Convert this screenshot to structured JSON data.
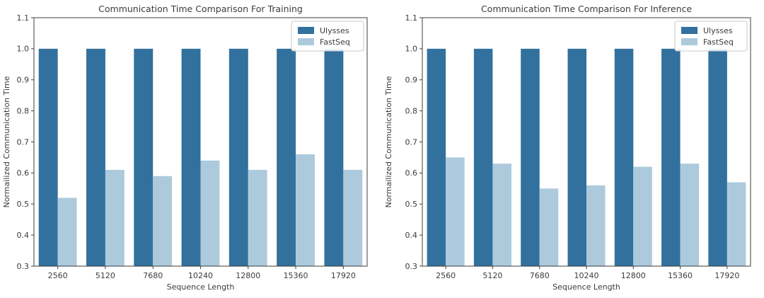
{
  "figure": {
    "background": "#ffffff",
    "text_color": "#3b3b3b",
    "spine_color": "#3c3c3c",
    "legend_border_color": "#c9c9c9"
  },
  "chart_data": [
    {
      "type": "bar",
      "title": "Communication Time Comparison For Training",
      "xlabel": "Sequence Length",
      "ylabel": "Normailized Communication Time",
      "categories": [
        "2560",
        "5120",
        "7680",
        "10240",
        "12800",
        "15360",
        "17920"
      ],
      "series": [
        {
          "name": "Ulysses",
          "color": "#32719E",
          "values": [
            1.0,
            1.0,
            1.0,
            1.0,
            1.0,
            1.0,
            1.0
          ]
        },
        {
          "name": "FastSeq",
          "color": "#ADCADD",
          "values": [
            0.52,
            0.61,
            0.59,
            0.64,
            0.61,
            0.66,
            0.61
          ]
        }
      ],
      "ylim": [
        0.3,
        1.1
      ],
      "yticks": [
        "0.3",
        "0.4",
        "0.5",
        "0.6",
        "0.7",
        "0.8",
        "0.9",
        "1.0",
        "1.1"
      ],
      "grid": false,
      "legend_position": "upper right"
    },
    {
      "type": "bar",
      "title": "Communication Time Comparison For Inference",
      "xlabel": "Sequence Length",
      "ylabel": "Normailized Communication Time",
      "categories": [
        "2560",
        "5120",
        "7680",
        "10240",
        "12800",
        "15360",
        "17920"
      ],
      "series": [
        {
          "name": "Ulysses",
          "color": "#32719E",
          "values": [
            1.0,
            1.0,
            1.0,
            1.0,
            1.0,
            1.0,
            1.0
          ]
        },
        {
          "name": "FastSeq",
          "color": "#ADCADD",
          "values": [
            0.65,
            0.63,
            0.55,
            0.56,
            0.62,
            0.63,
            0.57
          ]
        }
      ],
      "ylim": [
        0.3,
        1.1
      ],
      "yticks": [
        "0.3",
        "0.4",
        "0.5",
        "0.6",
        "0.7",
        "0.8",
        "0.9",
        "1.0",
        "1.1"
      ],
      "grid": false,
      "legend_position": "upper right"
    }
  ]
}
